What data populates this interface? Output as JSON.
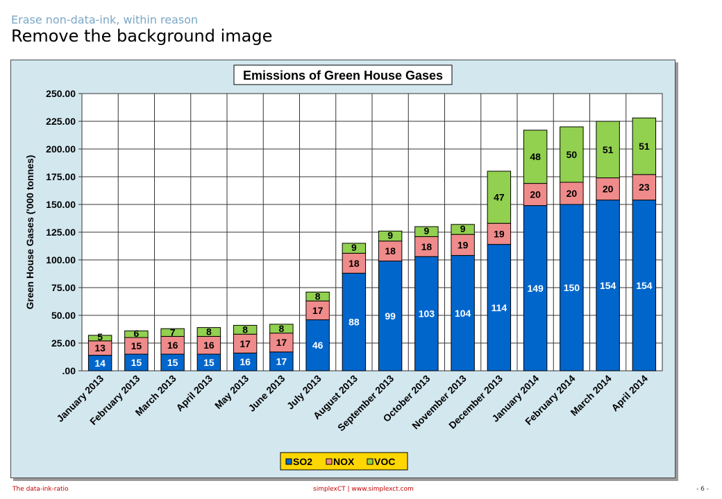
{
  "slide": {
    "subtitle": "Erase non-data-ink, within reason",
    "title": "Remove the background image"
  },
  "footer": {
    "left": "The data-ink-ratio",
    "center": "simplexCT  |  www.simplexct.com",
    "right": "- 6 -"
  },
  "colors": {
    "so2": "#0066cc",
    "nox": "#f08b8b",
    "voc": "#92d050",
    "plot_bg": "#ffffff",
    "chart_bg": "#d3e7ef",
    "legend_bg": "#ffd700"
  },
  "chart_data": {
    "type": "bar",
    "stacked": true,
    "title": "Emissions of Green House Gases",
    "ylabel": "Green House Gases ('000 tonnes)",
    "xlabel": "",
    "ylim": [
      0,
      250
    ],
    "y_ticks": [
      ".00",
      "25.00",
      "50.00",
      "75.00",
      "100.00",
      "125.00",
      "150.00",
      "175.00",
      "200.00",
      "225.00",
      "250.00"
    ],
    "grid": true,
    "legend_position": "bottom",
    "categories": [
      "January 2013",
      "February 2013",
      "March 2013",
      "April 2013",
      "May 2013",
      "June 2013",
      "July 2013",
      "August 2013",
      "September 2013",
      "October 2013",
      "November 2013",
      "December 2013",
      "January 2014",
      "February 2014",
      "March 2014",
      "April 2014"
    ],
    "series": [
      {
        "name": "SO2",
        "values": [
          14,
          15,
          15,
          15,
          16,
          17,
          46,
          88,
          99,
          103,
          104,
          114,
          149,
          150,
          154,
          154
        ]
      },
      {
        "name": "NOX",
        "values": [
          13,
          15,
          16,
          16,
          17,
          17,
          17,
          18,
          18,
          18,
          19,
          19,
          20,
          20,
          20,
          23
        ]
      },
      {
        "name": "VOC",
        "values": [
          5,
          6,
          7,
          8,
          8,
          8,
          8,
          9,
          9,
          9,
          9,
          47,
          48,
          50,
          51,
          51
        ]
      }
    ]
  }
}
